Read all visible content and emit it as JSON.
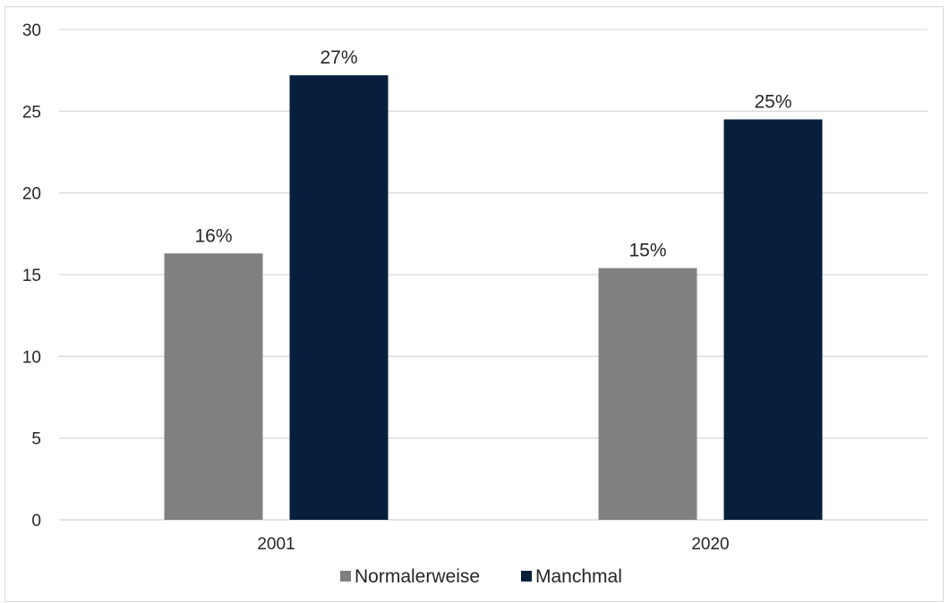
{
  "chart_data": {
    "type": "bar",
    "categories": [
      "2001",
      "2020"
    ],
    "series": [
      {
        "name": "Normalerweise",
        "values": [
          16.3,
          15.4
        ],
        "labels": [
          "16%",
          "15%"
        ],
        "color": "#808080"
      },
      {
        "name": "Manchmal",
        "values": [
          27.2,
          24.5
        ],
        "labels": [
          "27%",
          "25%"
        ],
        "color": "#071f3c"
      }
    ],
    "title": "",
    "xlabel": "",
    "ylabel": "",
    "ylim": [
      0,
      30
    ],
    "yticks": [
      "0",
      "5",
      "10",
      "15",
      "20",
      "25",
      "30"
    ],
    "grid": true,
    "legend": "bottom",
    "grid_color": "#d9d9d9"
  }
}
